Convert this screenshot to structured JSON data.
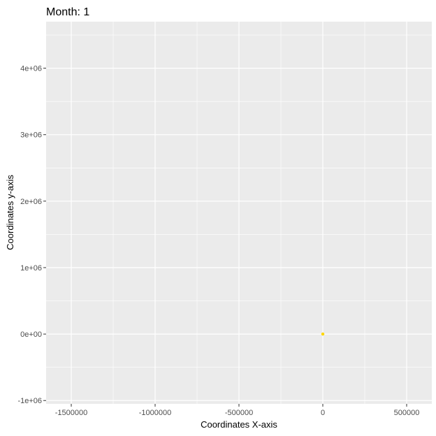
{
  "chart_data": {
    "type": "scatter",
    "title": "Month: 1",
    "xlabel": "Coordinates X-axis",
    "ylabel": "Coordinates y-axis",
    "xlim": [
      -1650000,
      650000
    ],
    "ylim": [
      -1050000,
      4700000
    ],
    "x_ticks": [
      {
        "value": -1500000,
        "label": "-1500000"
      },
      {
        "value": -1000000,
        "label": "-1000000"
      },
      {
        "value": -500000,
        "label": "-500000"
      },
      {
        "value": 0,
        "label": "0"
      },
      {
        "value": 500000,
        "label": "500000"
      }
    ],
    "y_ticks": [
      {
        "value": -1000000,
        "label": "-1e+06"
      },
      {
        "value": 0,
        "label": "0e+00"
      },
      {
        "value": 1000000,
        "label": "1e+06"
      },
      {
        "value": 2000000,
        "label": "2e+06"
      },
      {
        "value": 3000000,
        "label": "3e+06"
      },
      {
        "value": 4000000,
        "label": "4e+06"
      }
    ],
    "grid": true,
    "panel_color": "#ebebeb",
    "grid_color": "#ffffff",
    "points": [
      {
        "x": 0,
        "y": 0,
        "color": "#ffd700"
      }
    ]
  }
}
